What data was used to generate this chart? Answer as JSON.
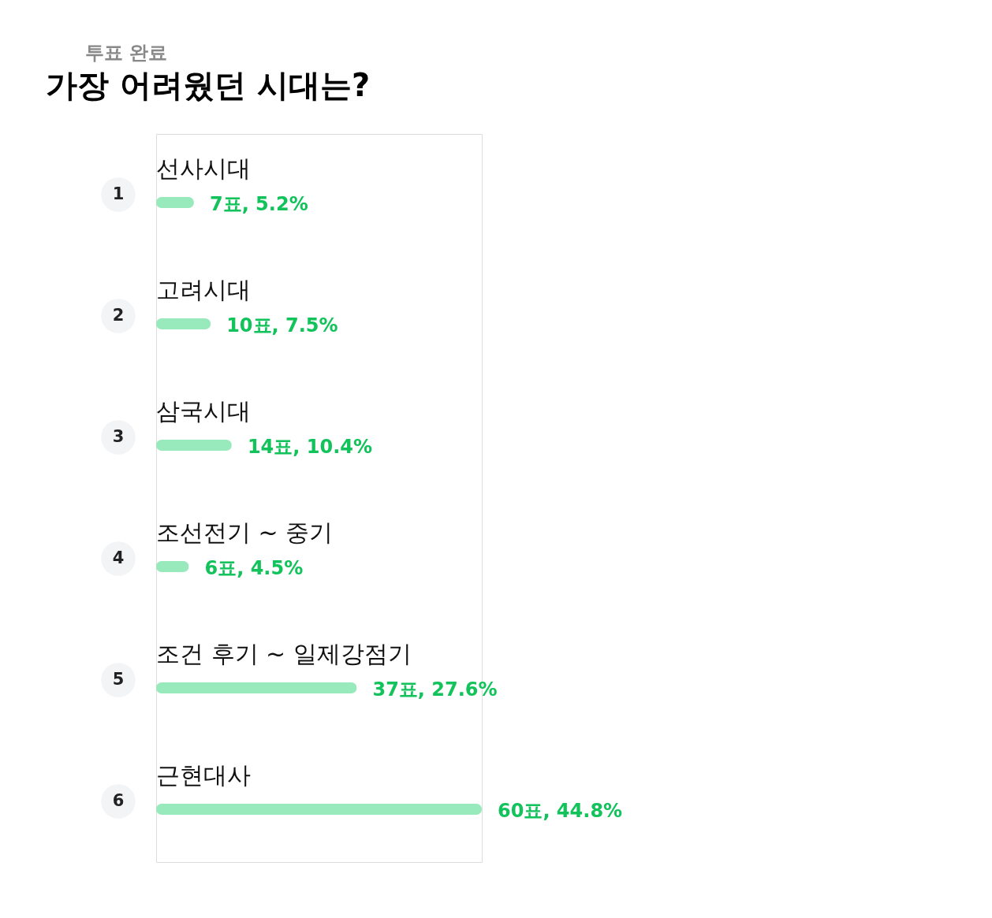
{
  "chart_data": {
    "type": "bar",
    "orientation": "horizontal",
    "title": "가장 어려웠던 시대는?",
    "subtitle": "투표 완료",
    "categories": [
      "선사시대",
      "고려시대",
      "삼국시대",
      "조선전기 ~ 중기",
      "조건 후기 ~ 일제강점기",
      "근현대사"
    ],
    "values": [
      5.2,
      7.5,
      10.4,
      4.5,
      27.6,
      44.8
    ],
    "value_labels": [
      "7표, 5.2%",
      "10표, 7.5%",
      "14표, 10.4%",
      "6표, 4.5%",
      "37표, 27.6%",
      "60표, 44.8%"
    ],
    "annotations": [
      "1",
      "2",
      "3",
      "4",
      "5",
      "6"
    ],
    "color": "#98e9bc"
  }
}
